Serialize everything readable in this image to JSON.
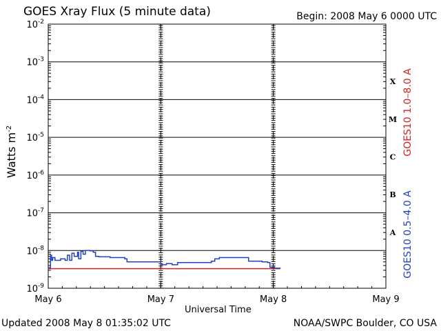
{
  "header": {
    "title": "GOES Xray Flux (5 minute data)",
    "begin": "Begin:  2008 May 6 0000 UTC"
  },
  "footer": {
    "updated": "Updated 2008 May  8 01:35:02 UTC",
    "credit": "NOAA/SWPC Boulder, CO USA"
  },
  "chart_data": {
    "type": "line",
    "ylabel_base": "Watts m",
    "ylabel_exp": "-2",
    "xlabel": "Universal Time",
    "yscale": "log",
    "ylim": [
      1e-09,
      0.01
    ],
    "y_ticks": [
      {
        "base": "10",
        "exp": "-2",
        "value": 0.01
      },
      {
        "base": "10",
        "exp": "-3",
        "value": 0.001
      },
      {
        "base": "10",
        "exp": "-4",
        "value": 0.0001
      },
      {
        "base": "10",
        "exp": "-5",
        "value": 1e-05
      },
      {
        "base": "10",
        "exp": "-6",
        "value": 1e-06
      },
      {
        "base": "10",
        "exp": "-7",
        "value": 1e-07
      },
      {
        "base": "10",
        "exp": "-8",
        "value": 1e-08
      },
      {
        "base": "10",
        "exp": "-9",
        "value": 1e-09
      }
    ],
    "x_ticks": [
      {
        "label": "May 6",
        "day": 0
      },
      {
        "label": "May 7",
        "day": 1
      },
      {
        "label": "May 8",
        "day": 2
      },
      {
        "label": "May 9",
        "day": 3
      }
    ],
    "xlim_days": [
      0,
      3
    ],
    "flare_classes": [
      {
        "label": "X",
        "lower": 0.0001
      },
      {
        "label": "M",
        "lower": 1e-05
      },
      {
        "label": "C",
        "lower": 1e-06
      },
      {
        "label": "B",
        "lower": 1e-07
      },
      {
        "label": "A",
        "lower": 1e-08
      }
    ],
    "grid": true,
    "series": [
      {
        "name": "GOES10 1.0–8.0 A",
        "color": "#d42020",
        "points": [
          [
            0.0,
            3.3e-09
          ],
          [
            2.06,
            3.3e-09
          ]
        ]
      },
      {
        "name": "GOES10 0.5–4.0 A",
        "color": "#2040c0",
        "points": [
          [
            0.0,
            3.5e-09
          ],
          [
            0.02,
            7.5e-09
          ],
          [
            0.03,
            5.5e-09
          ],
          [
            0.04,
            6.5e-09
          ],
          [
            0.06,
            5.5e-09
          ],
          [
            0.09,
            5.5e-09
          ],
          [
            0.11,
            6e-09
          ],
          [
            0.15,
            5.5e-09
          ],
          [
            0.17,
            7.5e-09
          ],
          [
            0.19,
            5.5e-09
          ],
          [
            0.21,
            8.5e-09
          ],
          [
            0.23,
            7e-09
          ],
          [
            0.26,
            9e-09
          ],
          [
            0.27,
            6e-09
          ],
          [
            0.29,
            9.5e-09
          ],
          [
            0.31,
            8e-09
          ],
          [
            0.33,
            1e-08
          ],
          [
            0.37,
            9.8e-09
          ],
          [
            0.4,
            9e-09
          ],
          [
            0.42,
            7e-09
          ],
          [
            0.45,
            6.8e-09
          ],
          [
            0.55,
            6.5e-09
          ],
          [
            0.68,
            6e-09
          ],
          [
            0.7,
            5e-09
          ],
          [
            0.99,
            5e-09
          ],
          [
            1.0,
            4.2e-09
          ],
          [
            1.05,
            4.5e-09
          ],
          [
            1.1,
            4.2e-09
          ],
          [
            1.15,
            4.8e-09
          ],
          [
            1.4,
            4.8e-09
          ],
          [
            1.45,
            5.2e-09
          ],
          [
            1.48,
            6e-09
          ],
          [
            1.52,
            6.5e-09
          ],
          [
            1.75,
            6.5e-09
          ],
          [
            1.78,
            5.2e-09
          ],
          [
            1.9,
            5e-09
          ],
          [
            1.95,
            4.8e-09
          ],
          [
            1.97,
            3.6e-09
          ],
          [
            2.01,
            3.4e-09
          ],
          [
            2.06,
            3.5e-09
          ]
        ]
      }
    ]
  }
}
